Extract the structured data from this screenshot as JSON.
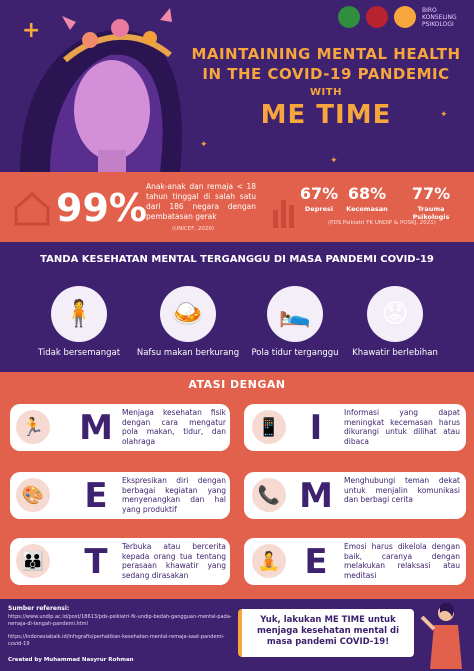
{
  "header": {
    "title_line1": "MAINTAINING MENTAL HEALTH",
    "title_line2": "IN THE COVID-19 PANDEMIC",
    "with": "WITH",
    "me_time": "ME TIME",
    "logo_text": "BIRO KONSELING PSIKOLOGI"
  },
  "stats": {
    "big": "99%",
    "desc": "Anak-anak dan remaja < 18 tahun tinggal di salah satu dari 186 negara dengan pembatasan gerak",
    "src1": "(UNICEF, 2020)",
    "items": [
      {
        "value": "67%",
        "label": "Depresi"
      },
      {
        "value": "68%",
        "label": "Kecemasan"
      },
      {
        "value": "77%",
        "label": "Trauma Psikologis"
      }
    ],
    "src2": "(PDS Psikiatri FK UNDIP & POSKJ, 2021)"
  },
  "signs": {
    "title": "TANDA KESEHATAN MENTAL TERGANGGU DI MASA PANDEMI COVID-19",
    "items": [
      {
        "label": "Tidak bersemangat"
      },
      {
        "label": "Nafsu makan berkurang"
      },
      {
        "label": "Pola tidur terganggu"
      },
      {
        "label": "Khawatir berlebihan"
      }
    ]
  },
  "atasi": {
    "title": "ATASI DENGAN",
    "left": [
      {
        "letter": "M",
        "text": "Menjaga kesehatan fisik dengan cara mengatur pola makan, tidur, dan olahraga"
      },
      {
        "letter": "E",
        "text": "Ekspresikan diri dengan berbagai kegiatan yang menyenangkan dan hal yang produktif"
      },
      {
        "letter": "T",
        "text": "Terbuka atau bercerita kepada orang tua tentang perasaan khawatir yang sedang dirasakan"
      }
    ],
    "right": [
      {
        "letter": "I",
        "text": "Informasi yang dapat meningkat kecemasan harus dikurangi untuk dilihat atau dibaca"
      },
      {
        "letter": "M",
        "text": "Menghubungi teman dekat untuk menjalin komunikasi dan berbagi cerita"
      },
      {
        "letter": "E",
        "text": "Emosi harus dikelola dengan baik, caranya dengan melakukan relaksasi atau meditasi"
      }
    ]
  },
  "footer": {
    "ref_heading": "Sumber referensi:",
    "refs": [
      "https://www.undip.ac.id/post/18613/pds-psikiatri-fk-undip-bedah-gangguan-mental-pada-remaja-di-tengah-pandemi.html",
      "https://indonesiabaik.id/infografis/perhatikan-kesehatan-mental-remaja-saat-pandemi-covid-19"
    ],
    "created": "Created by Muhammad Nasyrur Rohman",
    "cta": "Yuk, lakukan ME TIME untuk menjaga kesehatan mental di masa pandemi COVID-19!"
  },
  "colors": {
    "purple": "#3e2270",
    "coral": "#e2614c",
    "orange": "#f6a63c"
  }
}
